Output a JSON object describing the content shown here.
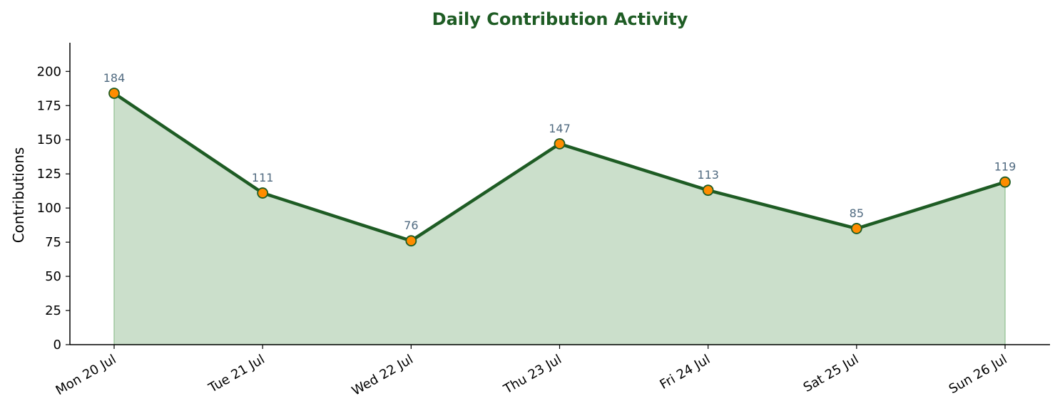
{
  "chart_data": {
    "type": "area",
    "title": "Daily Contribution Activity",
    "xlabel": "",
    "ylabel": "Contributions",
    "categories": [
      "Mon 20 Jul",
      "Tue 21 Jul",
      "Wed 22 Jul",
      "Thu 23 Jul",
      "Fri 24 Jul",
      "Sat 25 Jul",
      "Sun 26 Jul"
    ],
    "series": [
      {
        "values": [
          184,
          111,
          76,
          147,
          113,
          85,
          119
        ]
      }
    ],
    "ylim": [
      0,
      221
    ],
    "yticks": [
      0,
      25,
      50,
      75,
      100,
      125,
      150,
      175,
      200
    ],
    "grid": false,
    "legend": "none",
    "data_labels": true,
    "colors": {
      "title": "#1e5c24",
      "line": "#1e5c24",
      "area_fill": "#cbdfcb",
      "area_edge": "#8fbf8f",
      "marker_fill": "#ff8c00",
      "marker_edge": "#1e5c24",
      "data_label": "#506a80",
      "axis": "#000000"
    }
  }
}
